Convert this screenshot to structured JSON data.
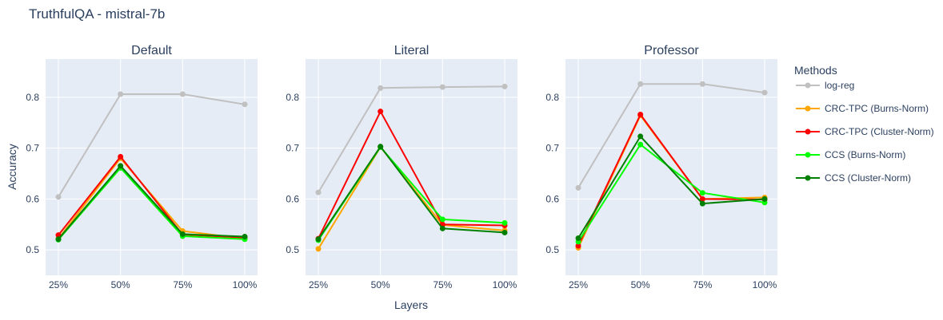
{
  "figure": {
    "title": "TruthfulQA - mistral-7b",
    "xlabel": "Layers",
    "ylabel": "Accuracy"
  },
  "legend": {
    "title": "Methods",
    "placement": "right"
  },
  "colors": {
    "plot_background": "#e5ecf6",
    "grid": "#ffffff",
    "text": "#2a3f5f"
  },
  "chart_data": {
    "type": "line",
    "categories": [
      "25%",
      "50%",
      "75%",
      "100%"
    ],
    "ylim": [
      0.45,
      0.875
    ],
    "yticks": [
      0.5,
      0.6,
      0.7,
      0.8
    ],
    "grid": true,
    "series_meta": [
      {
        "name": "log-reg",
        "color": "#c0c0c0"
      },
      {
        "name": "CRC-TPC (Burns-Norm)",
        "color": "#ffa500"
      },
      {
        "name": "CRC-TPC (Cluster-Norm)",
        "color": "#ff0000"
      },
      {
        "name": "CCS (Burns-Norm)",
        "color": "#00ff00"
      },
      {
        "name": "CCS (Cluster-Norm)",
        "color": "#008000"
      }
    ],
    "panels": [
      {
        "title": "Default",
        "series": [
          {
            "name": "log-reg",
            "values": [
              0.604,
              0.806,
              0.806,
              0.786
            ]
          },
          {
            "name": "CRC-TPC (Burns-Norm)",
            "values": [
              0.522,
              0.68,
              0.537,
              0.522
            ]
          },
          {
            "name": "CRC-TPC (Cluster-Norm)",
            "values": [
              0.529,
              0.683,
              0.53,
              0.524
            ]
          },
          {
            "name": "CCS (Burns-Norm)",
            "values": [
              0.52,
              0.661,
              0.527,
              0.521
            ]
          },
          {
            "name": "CCS (Cluster-Norm)",
            "values": [
              0.521,
              0.665,
              0.531,
              0.526
            ]
          }
        ]
      },
      {
        "title": "Literal",
        "series": [
          {
            "name": "log-reg",
            "values": [
              0.613,
              0.818,
              0.82,
              0.821
            ]
          },
          {
            "name": "CRC-TPC (Burns-Norm)",
            "values": [
              0.502,
              0.702,
              0.549,
              0.538
            ]
          },
          {
            "name": "CRC-TPC (Cluster-Norm)",
            "values": [
              0.522,
              0.772,
              0.55,
              0.548
            ]
          },
          {
            "name": "CCS (Burns-Norm)",
            "values": [
              0.519,
              0.702,
              0.56,
              0.553
            ]
          },
          {
            "name": "CCS (Cluster-Norm)",
            "values": [
              0.521,
              0.703,
              0.542,
              0.534
            ]
          }
        ]
      },
      {
        "title": "Professor",
        "series": [
          {
            "name": "log-reg",
            "values": [
              0.622,
              0.826,
              0.826,
              0.809
            ]
          },
          {
            "name": "CRC-TPC (Burns-Norm)",
            "values": [
              0.504,
              0.764,
              0.6,
              0.603
            ]
          },
          {
            "name": "CRC-TPC (Cluster-Norm)",
            "values": [
              0.508,
              0.766,
              0.6,
              0.599
            ]
          },
          {
            "name": "CCS (Burns-Norm)",
            "values": [
              0.516,
              0.707,
              0.612,
              0.593
            ]
          },
          {
            "name": "CCS (Cluster-Norm)",
            "values": [
              0.523,
              0.723,
              0.591,
              0.6
            ]
          }
        ]
      }
    ]
  }
}
